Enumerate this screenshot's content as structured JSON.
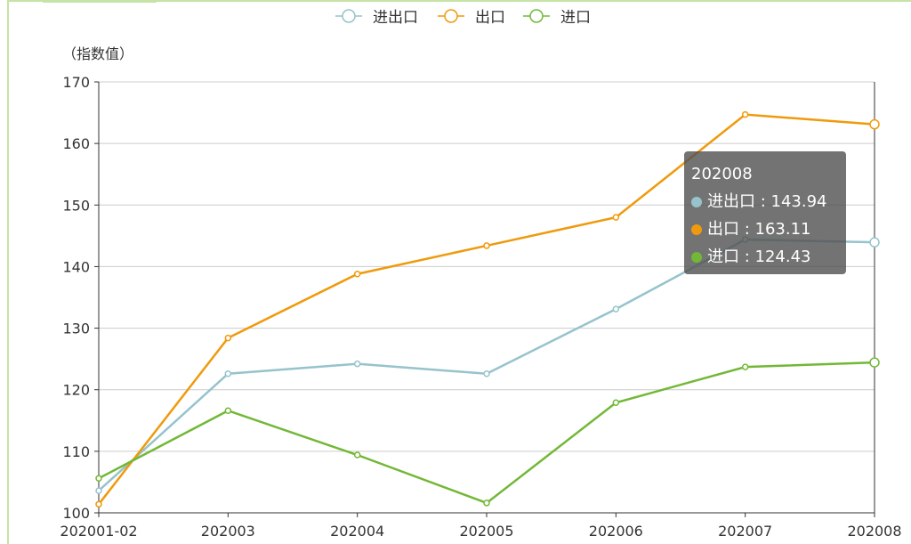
{
  "chart_data": {
    "type": "line",
    "ylabel": "（指数值）",
    "categories": [
      "202001-02",
      "202003",
      "202004",
      "202005",
      "202006",
      "202007",
      "202008"
    ],
    "ylim": [
      100,
      170
    ],
    "yticks": [
      "100",
      "110",
      "120",
      "130",
      "140",
      "150",
      "160",
      "170"
    ],
    "grid": true,
    "legend_position": "top-center",
    "series": [
      {
        "name": "进出口",
        "color": "#96c3cc",
        "values": [
          103.6,
          122.6,
          124.2,
          122.6,
          133.1,
          144.4,
          143.94
        ]
      },
      {
        "name": "出口",
        "color": "#ef9a0c",
        "values": [
          101.4,
          128.4,
          138.8,
          143.4,
          148.0,
          164.7,
          163.11
        ]
      },
      {
        "name": "进口",
        "color": "#72b836",
        "values": [
          105.6,
          116.6,
          109.4,
          101.6,
          117.9,
          123.7,
          124.43
        ]
      }
    ],
    "tooltip": {
      "title": "202008",
      "rows": [
        "进出口 : 143.94",
        "出口 : 163.11",
        "进口 : 124.43"
      ]
    }
  }
}
